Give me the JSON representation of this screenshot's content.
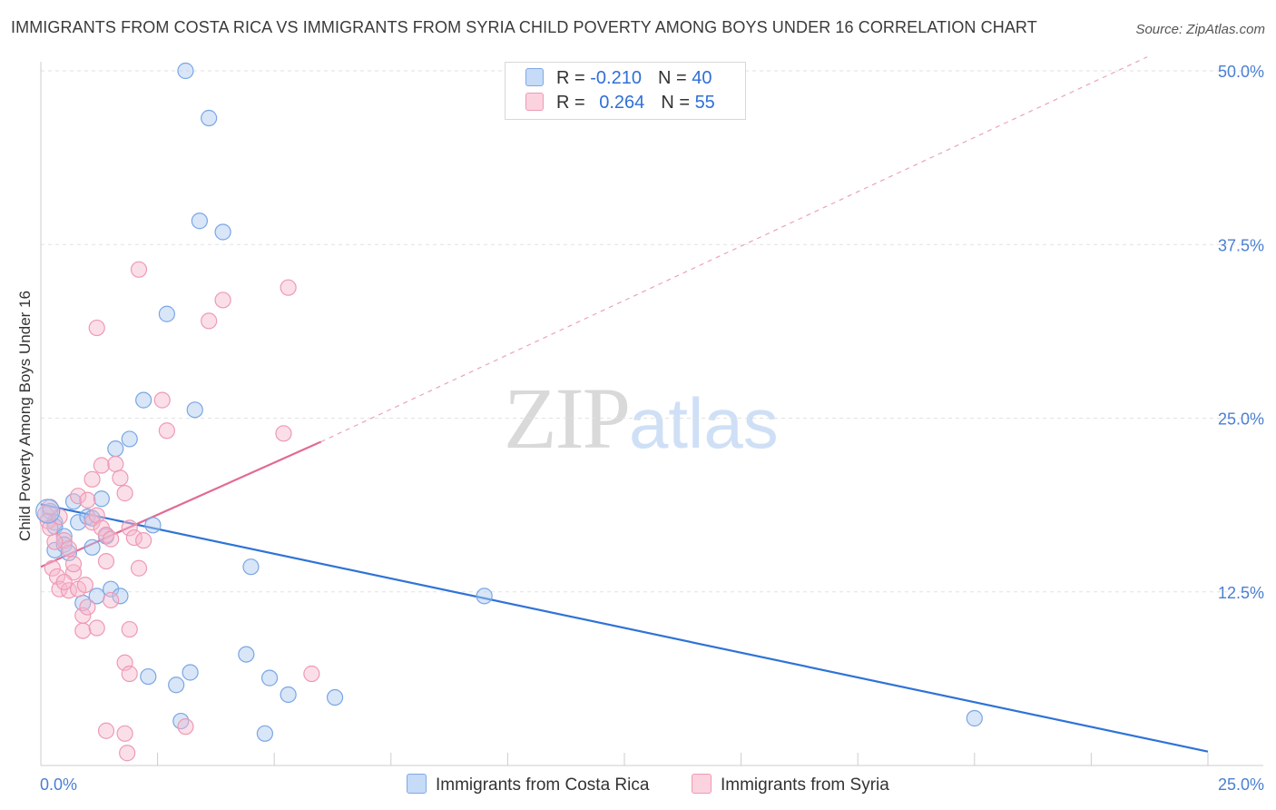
{
  "header": {
    "title": "IMMIGRANTS FROM COSTA RICA VS IMMIGRANTS FROM SYRIA CHILD POVERTY AMONG BOYS UNDER 16 CORRELATION CHART",
    "source": "Source: ZipAtlas.com"
  },
  "watermark": {
    "zip": "ZIP",
    "atlas": "atlas"
  },
  "legend": {
    "r_label": "R =",
    "n_label": "N =",
    "rows": [
      {
        "r": "-0.210",
        "n": "40",
        "color": "#a8c8f0"
      },
      {
        "r": "0.264",
        "n": "55",
        "color": "#f6b9cc"
      }
    ]
  },
  "colors": {
    "blue": "#2f73d6",
    "pink": "#e26a95",
    "blue_fill": "#a8c8f0",
    "pink_fill": "#f6b9cc"
  },
  "chart_data": {
    "type": "scatter",
    "title": "IMMIGRANTS FROM COSTA RICA VS IMMIGRANTS FROM SYRIA CHILD POVERTY AMONG BOYS UNDER 16 CORRELATION CHART",
    "xlabel": "",
    "ylabel": "Child Poverty Among Boys Under 16",
    "xlim": [
      0,
      25
    ],
    "ylim": [
      0,
      50
    ],
    "x_tick_labels": [
      "0.0%",
      "25.0%"
    ],
    "y_ticks": [
      12.5,
      25.0,
      37.5,
      50.0
    ],
    "y_tick_labels": [
      "12.5%",
      "25.0%",
      "37.5%",
      "50.0%"
    ],
    "grid": true,
    "series": [
      {
        "name": "Immigrants from Costa Rica",
        "color": "#2f73d6",
        "trend": {
          "x": [
            0,
            25
          ],
          "y": [
            18.8,
            1.0
          ],
          "dashed_extension": false
        },
        "points": [
          [
            0.2,
            18.3
          ],
          [
            0.3,
            17.5
          ],
          [
            0.3,
            17.2
          ],
          [
            0.5,
            16.5
          ],
          [
            0.3,
            15.5
          ],
          [
            0.5,
            15.9
          ],
          [
            0.6,
            15.3
          ],
          [
            0.7,
            19.0
          ],
          [
            0.8,
            17.5
          ],
          [
            1.0,
            17.9
          ],
          [
            1.1,
            15.7
          ],
          [
            1.3,
            19.2
          ],
          [
            1.4,
            16.5
          ],
          [
            0.9,
            11.7
          ],
          [
            1.2,
            12.2
          ],
          [
            1.5,
            12.7
          ],
          [
            1.7,
            12.2
          ],
          [
            2.4,
            17.3
          ],
          [
            1.6,
            22.8
          ],
          [
            1.9,
            23.5
          ],
          [
            2.2,
            26.3
          ],
          [
            3.3,
            25.6
          ],
          [
            2.7,
            32.5
          ],
          [
            3.4,
            39.2
          ],
          [
            3.9,
            38.4
          ],
          [
            3.6,
            46.6
          ],
          [
            3.1,
            50.0
          ],
          [
            4.5,
            14.3
          ],
          [
            9.5,
            12.2
          ],
          [
            2.3,
            6.4
          ],
          [
            2.9,
            5.8
          ],
          [
            3.2,
            6.7
          ],
          [
            4.4,
            8.0
          ],
          [
            3.0,
            3.2
          ],
          [
            4.9,
            6.3
          ],
          [
            5.3,
            5.1
          ],
          [
            6.3,
            4.9
          ],
          [
            4.8,
            2.3
          ],
          [
            20.0,
            3.4
          ],
          [
            1.1,
            17.8
          ]
        ]
      },
      {
        "name": "Immigrants from Syria",
        "color": "#e26a95",
        "trend": {
          "x": [
            0,
            6.0
          ],
          "y": [
            14.3,
            23.3
          ],
          "dashed_extension": true,
          "extension_to": [
            23.7,
            51.0
          ]
        },
        "points": [
          [
            0.1,
            18.1
          ],
          [
            0.15,
            17.6
          ],
          [
            0.2,
            17.1
          ],
          [
            0.25,
            14.2
          ],
          [
            0.35,
            13.6
          ],
          [
            0.4,
            12.7
          ],
          [
            0.5,
            16.2
          ],
          [
            0.6,
            12.6
          ],
          [
            0.7,
            13.9
          ],
          [
            0.8,
            12.7
          ],
          [
            0.9,
            10.8
          ],
          [
            1.0,
            11.4
          ],
          [
            1.1,
            17.5
          ],
          [
            1.2,
            18.0
          ],
          [
            1.3,
            17.1
          ],
          [
            1.4,
            16.6
          ],
          [
            1.5,
            16.3
          ],
          [
            0.8,
            19.4
          ],
          [
            1.1,
            20.6
          ],
          [
            1.3,
            21.6
          ],
          [
            1.6,
            21.7
          ],
          [
            1.7,
            20.7
          ],
          [
            1.8,
            19.6
          ],
          [
            1.9,
            17.1
          ],
          [
            2.0,
            16.4
          ],
          [
            2.1,
            14.2
          ],
          [
            2.2,
            16.2
          ],
          [
            1.2,
            31.5
          ],
          [
            2.1,
            35.7
          ],
          [
            2.6,
            26.3
          ],
          [
            2.7,
            24.1
          ],
          [
            3.6,
            32.0
          ],
          [
            3.9,
            33.5
          ],
          [
            5.3,
            34.4
          ],
          [
            5.2,
            23.9
          ],
          [
            0.9,
            9.7
          ],
          [
            1.2,
            9.9
          ],
          [
            1.9,
            9.8
          ],
          [
            1.8,
            7.4
          ],
          [
            1.9,
            6.6
          ],
          [
            5.8,
            6.6
          ],
          [
            1.4,
            2.5
          ],
          [
            1.8,
            2.3
          ],
          [
            1.85,
            0.9
          ],
          [
            3.1,
            2.8
          ],
          [
            0.3,
            16.1
          ],
          [
            0.6,
            15.6
          ],
          [
            1.0,
            19.1
          ],
          [
            1.4,
            14.7
          ],
          [
            0.5,
            13.2
          ],
          [
            0.7,
            14.5
          ],
          [
            1.5,
            11.9
          ],
          [
            0.95,
            13.0
          ],
          [
            0.4,
            17.9
          ],
          [
            0.2,
            18.6
          ]
        ]
      }
    ],
    "legend_position": "top-center and bottom"
  }
}
